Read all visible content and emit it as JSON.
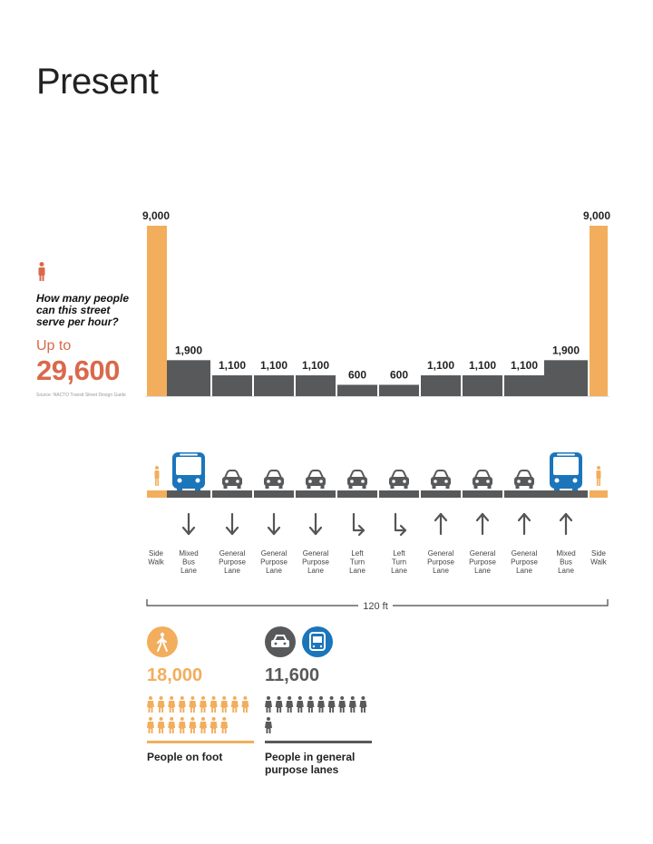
{
  "page": {
    "title": "Present",
    "question": "How many people can this street serve per hour?",
    "up_to_label": "Up to",
    "total": "29,600",
    "source": "Source: NACTO Transit Street Design Guide"
  },
  "colors": {
    "sidewalk": "#f2ae5c",
    "lane": "#58595b",
    "accent": "#d9694b",
    "bus": "#1b75bb",
    "baseline": "#e0e0e0"
  },
  "chart_data": {
    "type": "bar",
    "title": "How many people can this street serve per hour?",
    "categories": [
      "Side Walk",
      "Mixed Bus Lane",
      "General Purpose Lane",
      "General Purpose Lane",
      "General Purpose Lane",
      "Left Turn Lane",
      "Left Turn Lane",
      "General Purpose Lane",
      "General Purpose Lane",
      "General Purpose Lane",
      "Mixed Bus Lane",
      "Side Walk"
    ],
    "values": [
      9000,
      1900,
      1100,
      1100,
      1100,
      600,
      600,
      1100,
      1100,
      1100,
      1900,
      9000
    ],
    "value_labels": [
      "9,000",
      "1,900",
      "1,100",
      "1,100",
      "1,100",
      "600",
      "600",
      "1,100",
      "1,100",
      "1,100",
      "1,900",
      "9,000"
    ],
    "ylim": [
      0,
      9000
    ],
    "grid": false,
    "legend": "none"
  },
  "lanes": [
    {
      "kind": "sidewalk",
      "label": "Side Walk",
      "icon": "pedestrian-icon",
      "arrow": ""
    },
    {
      "kind": "bus",
      "label": "Mixed Bus Lane",
      "icon": "bus-icon",
      "arrow": "down"
    },
    {
      "kind": "car",
      "label": "General Purpose Lane",
      "icon": "car-icon",
      "arrow": "down"
    },
    {
      "kind": "car",
      "label": "General Purpose Lane",
      "icon": "car-icon",
      "arrow": "down"
    },
    {
      "kind": "car",
      "label": "General Purpose Lane",
      "icon": "car-icon",
      "arrow": "down"
    },
    {
      "kind": "car",
      "label": "Left Turn Lane",
      "icon": "car-icon",
      "arrow": "down-right"
    },
    {
      "kind": "car",
      "label": "Left Turn Lane",
      "icon": "car-icon",
      "arrow": "down-right"
    },
    {
      "kind": "car",
      "label": "General Purpose Lane",
      "icon": "car-icon",
      "arrow": "up"
    },
    {
      "kind": "car",
      "label": "General Purpose Lane",
      "icon": "car-icon",
      "arrow": "up"
    },
    {
      "kind": "car",
      "label": "General Purpose Lane",
      "icon": "car-icon",
      "arrow": "up"
    },
    {
      "kind": "bus",
      "label": "Mixed Bus Lane",
      "icon": "bus-icon",
      "arrow": "up"
    },
    {
      "kind": "sidewalk",
      "label": "Side Walk",
      "icon": "pedestrian-icon",
      "arrow": ""
    }
  ],
  "width_label": "120 ft",
  "stats": [
    {
      "value": "18,000",
      "label": "People on foot",
      "icon_count": 18
    },
    {
      "value": "11,600",
      "label": "People in general purpose lanes",
      "icon_count": 11
    }
  ]
}
